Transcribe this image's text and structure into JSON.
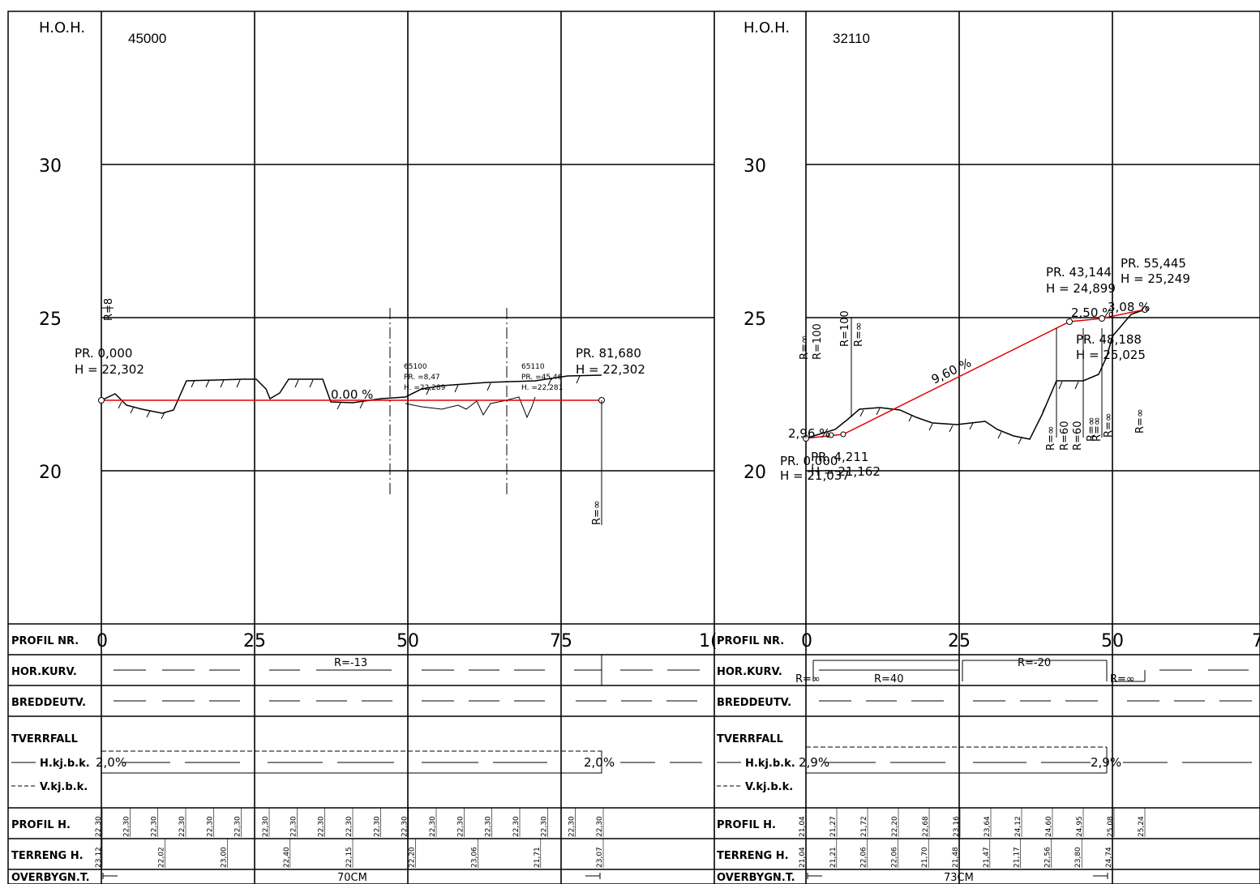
{
  "left": {
    "header": "H.O.H.",
    "id": "45000",
    "elev_labels": [
      "30",
      "25",
      "20"
    ],
    "x_labels": [
      "0",
      "25",
      "50",
      "75",
      "1("
    ],
    "r_top": "R=8",
    "r_end": "R=∞",
    "start": {
      "pr": "PR. 0,000",
      "h": "H = 22,302"
    },
    "end": {
      "pr": "PR. 81,680",
      "h": "H = 22,302"
    },
    "slope": "0.00 %",
    "cross1": {
      "id": "65100",
      "pr": "PR. =8,47",
      "h": "H. =22,289"
    },
    "cross2": {
      "id": "65110",
      "pr": "PR. =45,46",
      "h": "H. =22,281"
    },
    "hor_kurv": "R=-13",
    "tverr_left": "2,0%",
    "tverr_right": "2,0%",
    "profil_h": [
      "22,30",
      "22,30",
      "22,30",
      "22,30",
      "22,30",
      "22,30",
      "22,30",
      "22,30",
      "22,30",
      "22,30",
      "22,30",
      "22,30",
      "22,30",
      "22,30",
      "22,30",
      "22,30",
      "22,30",
      "22,30",
      "22,30"
    ],
    "terreng_h": [
      "23,12",
      "22,02",
      "23,00",
      "22,40",
      "22,15",
      "22,20",
      "23,06",
      "21,71",
      "23,07"
    ],
    "overbygn": "70CM"
  },
  "right": {
    "header": "H.O.H.",
    "id": "32110",
    "elev_labels": [
      "30",
      "25",
      "20"
    ],
    "x_labels": [
      "0",
      "25",
      "50",
      "7"
    ],
    "start": {
      "pr": "PR. 0,000",
      "h": "H = 21,037"
    },
    "p2": {
      "pr": "PR. 4,211",
      "h": "H = 21,162"
    },
    "p3": {
      "pr": "PR. 43,144",
      "h": "H = 24,899"
    },
    "p4": {
      "pr": "PR. 48,188",
      "h": "H = 25,025"
    },
    "p5": {
      "pr": "PR. 55,445",
      "h": "H = 25,249"
    },
    "slope1": "2,96 %",
    "slope2": "9,60 %",
    "slope3": "2,50 %",
    "slope4": "3,08 %",
    "r_labels": [
      "R=∞",
      "R=100",
      "R=100",
      "R=∞",
      "R=∞",
      "R=60",
      "R=60",
      "R=∞",
      "R=∞",
      "R=∞",
      "R=∞"
    ],
    "hor_kurv": [
      "R=∞",
      "R=40",
      "R=-20",
      "R=∞"
    ],
    "tverr_left": "2,9%",
    "tverr_right": "2,9%",
    "profil_h": [
      "21,04",
      "21,27",
      "21,72",
      "22,20",
      "22,68",
      "23,16",
      "23,64",
      "24,12",
      "24,60",
      "24,95",
      "25,08",
      "25,24"
    ],
    "terreng_h": [
      "21,04",
      "21,21",
      "22,06",
      "22,06",
      "21,70",
      "21,48",
      "21,47",
      "21,17",
      "22,56",
      "23,80",
      "24,74"
    ],
    "overbygn": "73CM"
  },
  "rows": {
    "profil_nr": "PROFIL NR.",
    "hor_kurv": "HOR.KURV.",
    "breddeutv": "BREDDEUTV.",
    "tverrfall": "TVERRFALL",
    "hkjbk": "H.kj.b.k.",
    "vkjbk": "V.kj.b.k.",
    "profil_h": "PROFIL H.",
    "terreng_h": "TERRENG H.",
    "overbygn": "OVERBYGN.T."
  },
  "colors": {
    "design_line": "#e00000",
    "ink": "#000000"
  }
}
